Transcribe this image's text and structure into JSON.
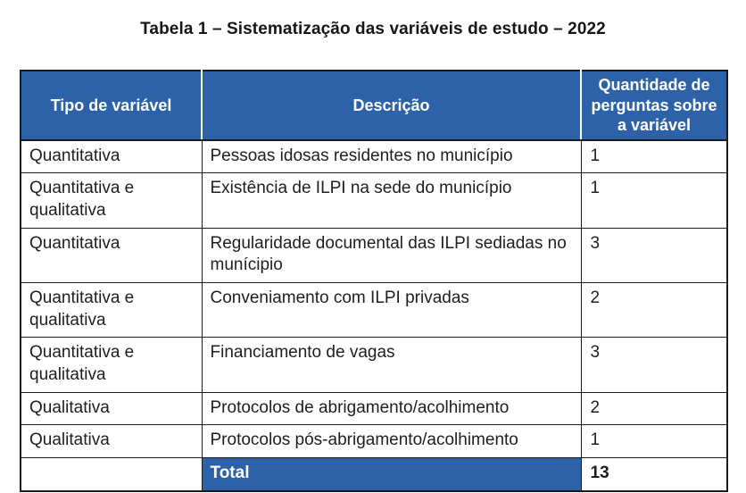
{
  "title": "Tabela 1 – Sistematização das variáveis de estudo – 2022",
  "table": {
    "columns": [
      "Tipo de variável",
      "Descrição",
      "Quantidade de perguntas sobre a variável"
    ],
    "rows": [
      {
        "tipo": "Quantitativa",
        "descricao": "Pessoas idosas residentes no município",
        "quantidade": "1"
      },
      {
        "tipo": "Quantitativa e qualitativa",
        "descricao": "Existência de ILPI na sede do município",
        "quantidade": "1"
      },
      {
        "tipo": "Quantitativa",
        "descricao": "Regularidade documental das ILPI sediadas no munícipio",
        "quantidade": "3"
      },
      {
        "tipo": "Quantitativa e qualitativa",
        "descricao": "Conveniamento com ILPI privadas",
        "quantidade": "2"
      },
      {
        "tipo": "Quantitativa e qualitativa",
        "descricao": "Financiamento de vagas",
        "quantidade": "3"
      },
      {
        "tipo": "Qualitativa",
        "descricao": "Protocolos de abrigamento/acolhimento",
        "quantidade": "2"
      },
      {
        "tipo": "Qualitativa",
        "descricao": "Protocolos pós-abrigamento/acolhimento",
        "quantidade": "1"
      }
    ],
    "total_label": "Total",
    "total_value": "13"
  },
  "colors": {
    "header_blue": "#2e62a8",
    "border_dark": "#1c1c1c"
  }
}
